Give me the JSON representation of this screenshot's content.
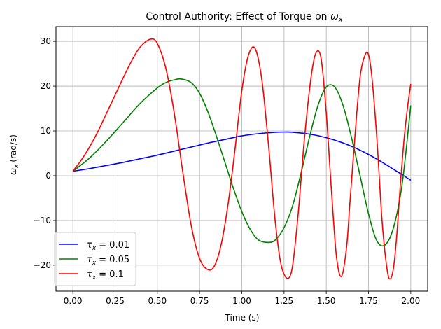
{
  "chart_data": {
    "type": "line",
    "title": "Control Authority: Effect of Torque on",
    "title_symbol": "ω",
    "title_symbol_sub": "x",
    "xlabel": "Time (s)",
    "ylabel": "(rad/s)",
    "ylabel_symbol": "ω",
    "ylabel_symbol_sub": "x",
    "xlim": [
      -0.1,
      2.1
    ],
    "ylim": [
      -25.8,
      33.3
    ],
    "xticks": [
      0.0,
      0.25,
      0.5,
      0.75,
      1.0,
      1.25,
      1.5,
      1.75,
      2.0
    ],
    "xtick_labels": [
      "0.00",
      "0.25",
      "0.50",
      "0.75",
      "1.00",
      "1.25",
      "1.50",
      "1.75",
      "2.00"
    ],
    "yticks": [
      -20,
      -10,
      0,
      10,
      20,
      30
    ],
    "ytick_labels": [
      "−20",
      "−10",
      "0",
      "10",
      "20",
      "30"
    ],
    "grid": true,
    "legend_position": "lower-left",
    "series": [
      {
        "name": "= 0.01",
        "name_symbol": "τ",
        "name_symbol_sub": "x",
        "color": "#0000ff",
        "x": [
          0.0,
          0.1,
          0.2,
          0.3,
          0.4,
          0.5,
          0.6,
          0.7,
          0.8,
          0.9,
          1.0,
          1.1,
          1.2,
          1.25,
          1.3,
          1.4,
          1.5,
          1.6,
          1.7,
          1.8,
          1.9,
          2.0
        ],
        "y": [
          1.0,
          1.6,
          2.3,
          3.0,
          3.8,
          4.6,
          5.5,
          6.4,
          7.3,
          8.1,
          8.9,
          9.4,
          9.7,
          9.75,
          9.7,
          9.3,
          8.5,
          7.3,
          5.7,
          3.7,
          1.4,
          -1.0
        ]
      },
      {
        "name": "= 0.05",
        "name_symbol": "τ",
        "name_symbol_sub": "x",
        "color": "#008000",
        "x": [
          0.0,
          0.1,
          0.2,
          0.3,
          0.4,
          0.5,
          0.55,
          0.6,
          0.64,
          0.7,
          0.75,
          0.8,
          0.85,
          0.9,
          0.95,
          1.0,
          1.05,
          1.1,
          1.16,
          1.2,
          1.25,
          1.3,
          1.35,
          1.4,
          1.45,
          1.5,
          1.55,
          1.6,
          1.65,
          1.7,
          1.75,
          1.8,
          1.85,
          1.9,
          1.95,
          2.0
        ],
        "y": [
          1.0,
          4.0,
          7.8,
          12.0,
          16.2,
          19.6,
          20.8,
          21.4,
          21.6,
          20.8,
          18.4,
          14.2,
          8.8,
          3.0,
          -2.8,
          -8.0,
          -12.0,
          -14.4,
          -14.9,
          -14.3,
          -11.6,
          -6.8,
          0.5,
          8.5,
          15.6,
          19.8,
          19.8,
          15.6,
          8.4,
          0.0,
          -8.5,
          -14.6,
          -15.4,
          -11.3,
          -1.6,
          15.7
        ]
      },
      {
        "name": "= 0.1",
        "name_symbol": "τ",
        "name_symbol_sub": "x",
        "color": "#ff0000",
        "x": [
          0.0,
          0.05,
          0.1,
          0.15,
          0.2,
          0.25,
          0.3,
          0.35,
          0.4,
          0.46,
          0.5,
          0.55,
          0.6,
          0.65,
          0.7,
          0.75,
          0.8,
          0.84,
          0.88,
          0.92,
          0.96,
          1.0,
          1.04,
          1.08,
          1.12,
          1.16,
          1.2,
          1.24,
          1.29,
          1.33,
          1.37,
          1.41,
          1.44,
          1.47,
          1.5,
          1.53,
          1.56,
          1.59,
          1.62,
          1.64,
          1.67,
          1.7,
          1.73,
          1.75,
          1.77,
          1.8,
          1.83,
          1.86,
          1.88,
          1.9,
          1.92,
          1.94,
          1.96,
          1.98,
          2.0
        ],
        "y": [
          1.0,
          3.5,
          6.5,
          10.0,
          14.0,
          18.0,
          22.0,
          25.8,
          28.8,
          30.5,
          29.5,
          24.0,
          14.0,
          1.0,
          -11.0,
          -18.5,
          -21.0,
          -20.0,
          -15.0,
          -6.0,
          6.0,
          19.0,
          27.0,
          28.3,
          21.0,
          6.0,
          -11.0,
          -21.0,
          -22.0,
          -10.0,
          8.0,
          22.0,
          27.5,
          26.0,
          14.0,
          -3.0,
          -18.0,
          -22.5,
          -16.0,
          -6.0,
          9.0,
          22.0,
          27.0,
          27.0,
          22.0,
          8.0,
          -10.0,
          -21.0,
          -23.0,
          -20.0,
          -12.0,
          -1.0,
          8.0,
          15.0,
          20.5
        ]
      }
    ]
  }
}
